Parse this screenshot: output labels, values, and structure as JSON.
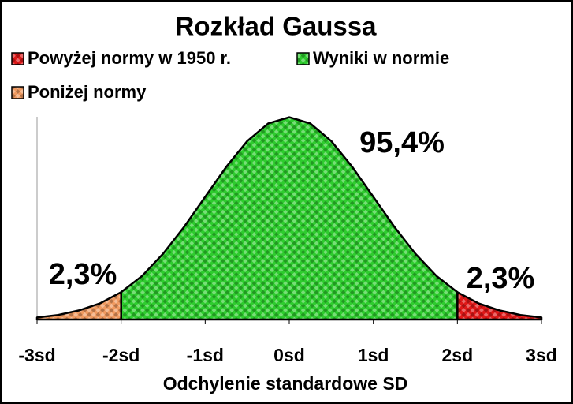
{
  "chart_data": {
    "type": "area",
    "title": "Rozkład Gaussa",
    "xlabel": "Odchylenie standardowe SD",
    "xlim": [
      -3,
      3
    ],
    "ylim": [
      0,
      0.4
    ],
    "xticks": [
      {
        "value": -3,
        "label": "-3sd"
      },
      {
        "value": -2,
        "label": "-2sd"
      },
      {
        "value": -1,
        "label": "-1sd"
      },
      {
        "value": 0,
        "label": "0sd"
      },
      {
        "value": 1,
        "label": "1sd"
      },
      {
        "value": 2,
        "label": "2sd"
      },
      {
        "value": 3,
        "label": "3sd"
      }
    ],
    "series": [
      {
        "name": "Powyżej normy w 1950 r.",
        "color": "#e01818",
        "share": 2.3,
        "share_label": "2,3%",
        "x": [
          2,
          2.25,
          2.5,
          2.75,
          3
        ],
        "values": [
          0.054,
          0.032,
          0.018,
          0.009,
          0.004
        ]
      },
      {
        "name": "Wyniki w normie",
        "color": "#2ecc2e",
        "share": 95.4,
        "share_label": "95,4%",
        "x": [
          -2,
          -1.75,
          -1.5,
          -1.25,
          -1,
          -0.75,
          -0.5,
          -0.25,
          0,
          0.25,
          0.5,
          0.75,
          1,
          1.25,
          1.5,
          1.75,
          2
        ],
        "values": [
          0.054,
          0.086,
          0.13,
          0.183,
          0.242,
          0.301,
          0.352,
          0.387,
          0.399,
          0.387,
          0.352,
          0.301,
          0.242,
          0.183,
          0.13,
          0.086,
          0.054
        ]
      },
      {
        "name": "Poniżej normy",
        "color": "#f09a60",
        "share": 2.3,
        "share_label": "2,3%",
        "x": [
          -3,
          -2.75,
          -2.5,
          -2.25,
          -2
        ],
        "values": [
          0.004,
          0.009,
          0.018,
          0.032,
          0.054
        ]
      }
    ]
  }
}
